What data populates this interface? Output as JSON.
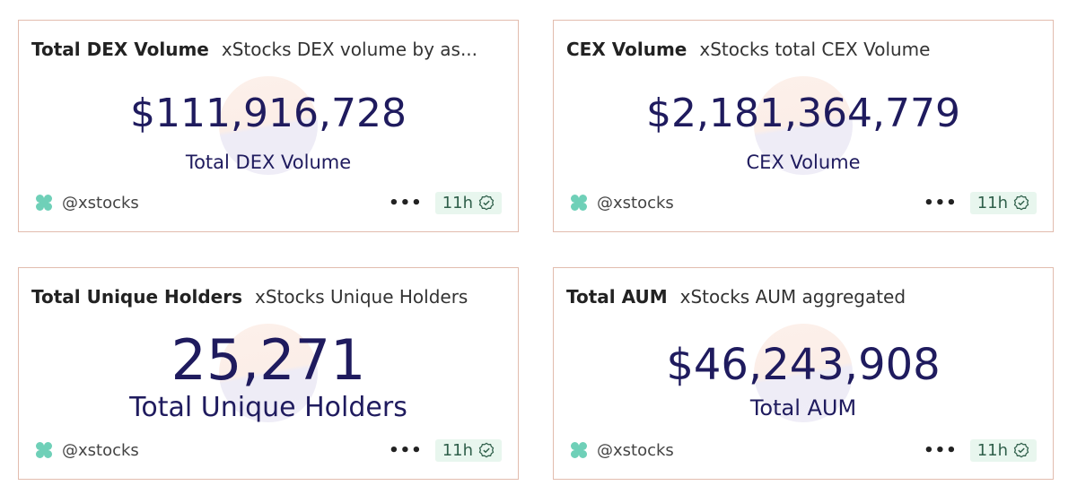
{
  "colors": {
    "value": "#1f1b5e",
    "border": "#e2bcae",
    "logo": "#6fd0b8",
    "badge_bg": "#e8f6ee"
  },
  "cards": [
    {
      "title": "Total DEX Volume",
      "subtitle": "xStocks DEX volume by as...",
      "value": "$111,916,728",
      "label": "Total DEX Volume",
      "user": "@xstocks",
      "more": "•••",
      "age": "11h"
    },
    {
      "title": "CEX Volume",
      "subtitle": "xStocks total CEX Volume",
      "value": "$2,181,364,779",
      "label": "CEX Volume",
      "user": "@xstocks",
      "more": "•••",
      "age": "11h"
    },
    {
      "title": "Total Unique Holders",
      "subtitle": "xStocks Unique Holders",
      "value": "25,271",
      "label": "Total Unique Holders",
      "user": "@xstocks",
      "more": "•••",
      "age": "11h"
    },
    {
      "title": "Total AUM",
      "subtitle": "xStocks AUM aggregated",
      "value": "$46,243,908",
      "label": "Total AUM",
      "user": "@xstocks",
      "more": "•••",
      "age": "11h"
    }
  ]
}
